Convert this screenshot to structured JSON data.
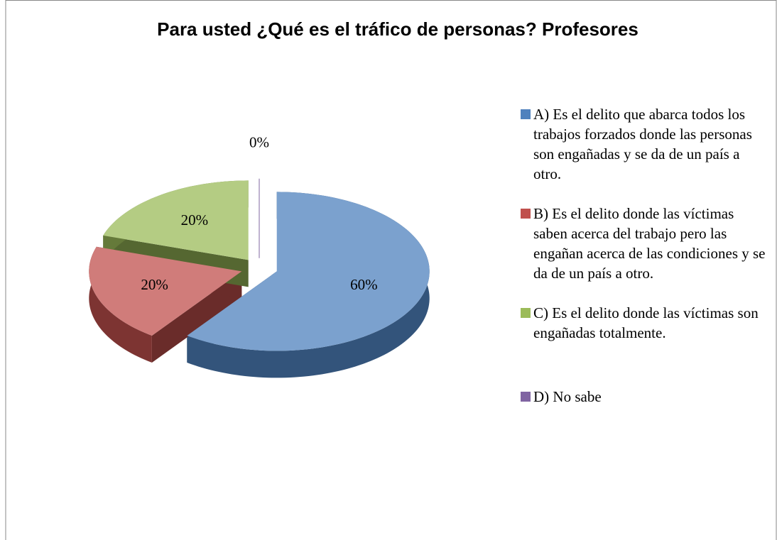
{
  "chart_data": {
    "type": "pie",
    "title": "Para usted ¿Qué es el tráfico de personas? Profesores",
    "categories": [
      "A) Es el delito que abarca todos los trabajos forzados donde las personas son engañadas y se da de un país a otro.",
      "B) Es el delito donde las víctimas saben acerca del trabajo pero las engañan acerca de las condiciones y se da de un país a otro.",
      "C) Es el delito donde las víctimas son engañadas totalmente.",
      "D) No sabe"
    ],
    "values": [
      60,
      20,
      20,
      0
    ],
    "value_labels": [
      "60%",
      "20%",
      "20%",
      "0%"
    ],
    "colors": [
      "#4f81bd",
      "#c0504d",
      "#9bbb59",
      "#8064a2"
    ],
    "legend": "right"
  }
}
